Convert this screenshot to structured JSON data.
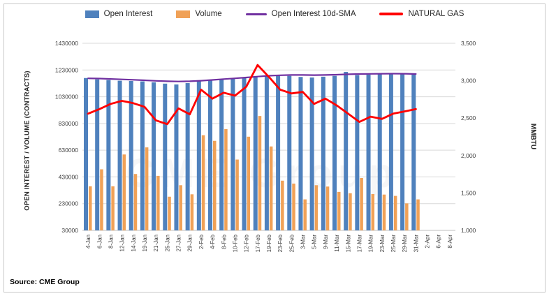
{
  "figure": {
    "source_note": "Source: CME Group",
    "watermark": "CME Group"
  },
  "legend": {
    "items": [
      {
        "label": "Open Interest",
        "type": "bar",
        "color": "#4F81BD"
      },
      {
        "label": "Volume",
        "type": "bar",
        "color": "#F0A157"
      },
      {
        "label": "Open Interest 10d-SMA",
        "type": "line",
        "color": "#7030A0"
      },
      {
        "label": "NATURAL GAS",
        "type": "line",
        "color": "#FF0000"
      }
    ]
  },
  "axes": {
    "left_title": "OPEN INTEREST / VOLUME (CONTRACTS)",
    "right_title": "MMBTU",
    "left_ticks": [
      "1430000",
      "1230000",
      "1030000",
      "830000",
      "630000",
      "430000",
      "230000",
      "30000"
    ],
    "right_ticks": [
      "3,500",
      "3,000",
      "2,500",
      "2,000",
      "1,500",
      "1,000"
    ],
    "left_min": 30000,
    "left_max": 1430000,
    "right_min": 1000,
    "right_max": 3500
  },
  "chart_data": {
    "type": "bar",
    "subtype": "combo-bar-line-dual-axis",
    "title": "",
    "xlabel": "",
    "ylabel_left": "OPEN INTEREST / VOLUME (CONTRACTS)",
    "ylabel_right": "MMBTU",
    "ylim_left": [
      30000,
      1430000
    ],
    "ylim_right": [
      1000,
      3500
    ],
    "grid": "horizontal",
    "legend_position": "top",
    "categories": [
      "4-Jan",
      "6-Jan",
      "8-Jan",
      "12-Jan",
      "14-Jan",
      "19-Jan",
      "21-Jan",
      "25-Jan",
      "27-Jan",
      "29-Jan",
      "2-Feb",
      "4-Feb",
      "8-Feb",
      "10-Feb",
      "12-Feb",
      "17-Feb",
      "19-Feb",
      "23-Feb",
      "25-Feb",
      "3-Mar",
      "5-Mar",
      "9-Mar",
      "11-Mar",
      "15-Mar",
      "17-Mar",
      "19-Mar",
      "23-Mar",
      "25-Mar",
      "29-Mar",
      "31-Mar",
      "2-Apr",
      "6-Apr",
      "8-Apr"
    ],
    "series": [
      {
        "name": "Open Interest",
        "type": "bar",
        "axis": "left",
        "color": "#4F81BD",
        "values": [
          1170000,
          1160000,
          1155000,
          1150000,
          1148000,
          1145000,
          1138000,
          1128000,
          1122000,
          1132000,
          1148000,
          1158000,
          1163000,
          1168000,
          1174000,
          1180000,
          1186000,
          1190000,
          1186000,
          1178000,
          1174000,
          1180000,
          1186000,
          1216000,
          1192000,
          1196000,
          1200000,
          1204000,
          1200000,
          1196000,
          null,
          null,
          null
        ]
      },
      {
        "name": "Volume",
        "type": "bar",
        "axis": "left",
        "color": "#F0A157",
        "values": [
          360000,
          487000,
          360000,
          598000,
          452000,
          651000,
          438000,
          282000,
          368000,
          300000,
          742000,
          700000,
          788000,
          560000,
          731000,
          886000,
          658000,
          402000,
          380000,
          262000,
          368000,
          358000,
          318000,
          308000,
          422000,
          302000,
          298000,
          288000,
          232000,
          262000,
          null,
          null,
          null
        ]
      },
      {
        "name": "Open Interest 10d-SMA",
        "type": "line",
        "axis": "left",
        "color": "#7030A0",
        "values": [
          1168000,
          1166000,
          1163000,
          1160000,
          1157000,
          1153000,
          1149000,
          1146000,
          1144000,
          1146000,
          1150000,
          1156000,
          1162000,
          1168000,
          1174000,
          1181000,
          1187000,
          1191000,
          1193000,
          1193000,
          1192000,
          1193000,
          1195000,
          1198000,
          1200000,
          1201000,
          1202000,
          1203000,
          1202000,
          1200000,
          null,
          null,
          null
        ]
      },
      {
        "name": "NATURAL GAS",
        "type": "line",
        "axis": "right",
        "color": "#FF0000",
        "values": [
          2560,
          2620,
          2690,
          2730,
          2700,
          2650,
          2470,
          2420,
          2630,
          2550,
          2880,
          2760,
          2840,
          2800,
          2920,
          3210,
          3050,
          2880,
          2830,
          2850,
          2690,
          2760,
          2670,
          2560,
          2450,
          2520,
          2490,
          2560,
          2590,
          2620,
          null,
          null,
          null
        ]
      }
    ]
  }
}
